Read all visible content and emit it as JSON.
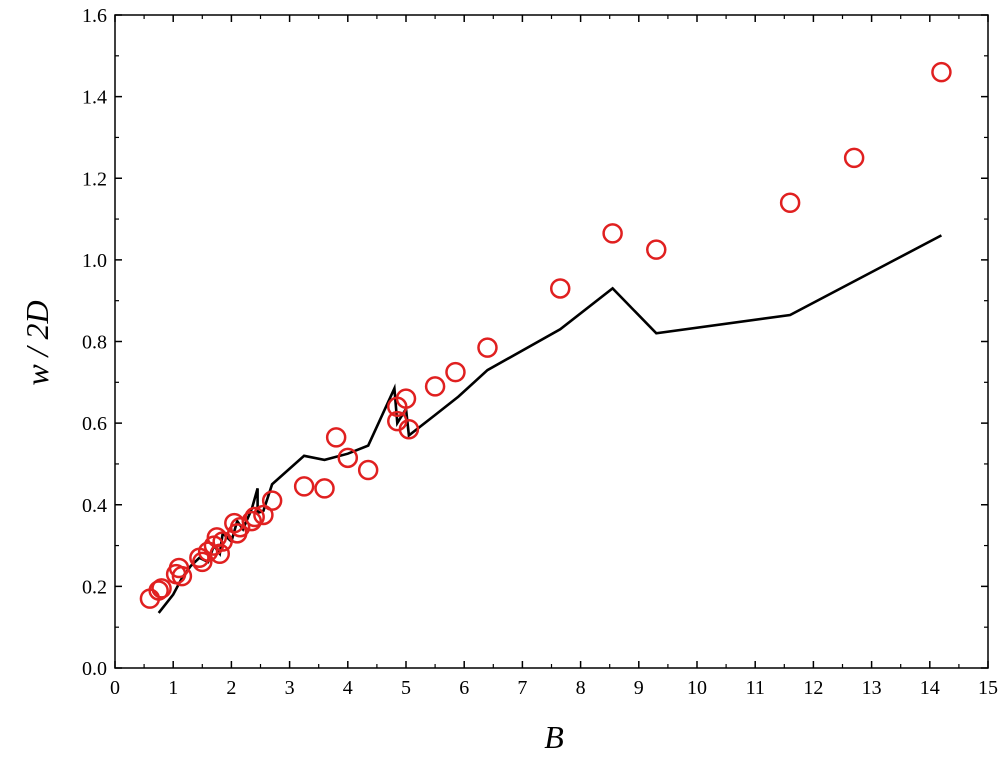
{
  "chart_data": {
    "type": "scatter",
    "title": "",
    "xlabel": "B",
    "ylabel": "w / 2D",
    "xlim": [
      0,
      15
    ],
    "ylim": [
      0.0,
      1.6
    ],
    "x_ticks": [
      "0",
      "1",
      "2",
      "3",
      "4",
      "5",
      "6",
      "7",
      "8",
      "9",
      "10",
      "11",
      "12",
      "13",
      "14",
      "15"
    ],
    "y_ticks": [
      "0.0",
      "0.2",
      "0.4",
      "0.6",
      "0.8",
      "1.0",
      "1.2",
      "1.4",
      "1.6"
    ],
    "grid": false,
    "legend": "none",
    "series": [
      {
        "kind": "scatter",
        "marker": "open-circle",
        "color": "#e02020",
        "points": [
          [
            0.6,
            0.17
          ],
          [
            0.75,
            0.19
          ],
          [
            0.8,
            0.195
          ],
          [
            1.05,
            0.23
          ],
          [
            1.1,
            0.245
          ],
          [
            1.15,
            0.225
          ],
          [
            1.45,
            0.27
          ],
          [
            1.5,
            0.26
          ],
          [
            1.6,
            0.285
          ],
          [
            1.7,
            0.3
          ],
          [
            1.75,
            0.32
          ],
          [
            1.8,
            0.28
          ],
          [
            1.85,
            0.31
          ],
          [
            2.05,
            0.355
          ],
          [
            2.1,
            0.33
          ],
          [
            2.15,
            0.345
          ],
          [
            2.35,
            0.36
          ],
          [
            2.4,
            0.37
          ],
          [
            2.55,
            0.375
          ],
          [
            2.7,
            0.41
          ],
          [
            3.25,
            0.445
          ],
          [
            3.6,
            0.44
          ],
          [
            3.8,
            0.565
          ],
          [
            4.0,
            0.515
          ],
          [
            4.35,
            0.485
          ],
          [
            4.85,
            0.64
          ],
          [
            4.85,
            0.605
          ],
          [
            5.0,
            0.66
          ],
          [
            5.05,
            0.585
          ],
          [
            5.5,
            0.69
          ],
          [
            5.85,
            0.725
          ],
          [
            6.4,
            0.785
          ],
          [
            7.65,
            0.93
          ],
          [
            8.55,
            1.065
          ],
          [
            9.3,
            1.025
          ],
          [
            11.6,
            1.14
          ],
          [
            12.7,
            1.25
          ],
          [
            14.2,
            1.46
          ]
        ]
      },
      {
        "kind": "line",
        "color": "#000000",
        "points": [
          [
            0.75,
            0.135
          ],
          [
            1.0,
            0.18
          ],
          [
            1.15,
            0.22
          ],
          [
            1.3,
            0.25
          ],
          [
            1.45,
            0.27
          ],
          [
            1.6,
            0.26
          ],
          [
            1.7,
            0.3
          ],
          [
            1.8,
            0.28
          ],
          [
            1.85,
            0.33
          ],
          [
            2.0,
            0.31
          ],
          [
            2.1,
            0.36
          ],
          [
            2.2,
            0.34
          ],
          [
            2.35,
            0.39
          ],
          [
            2.45,
            0.44
          ],
          [
            2.45,
            0.38
          ],
          [
            2.55,
            0.385
          ],
          [
            2.7,
            0.45
          ],
          [
            3.25,
            0.52
          ],
          [
            3.6,
            0.51
          ],
          [
            4.0,
            0.525
          ],
          [
            4.35,
            0.545
          ],
          [
            4.8,
            0.685
          ],
          [
            4.85,
            0.6
          ],
          [
            5.0,
            0.635
          ],
          [
            5.05,
            0.57
          ],
          [
            5.5,
            0.62
          ],
          [
            5.9,
            0.665
          ],
          [
            6.4,
            0.73
          ],
          [
            7.65,
            0.83
          ],
          [
            8.55,
            0.93
          ],
          [
            9.3,
            0.82
          ],
          [
            11.6,
            0.865
          ],
          [
            14.2,
            1.06
          ]
        ]
      }
    ]
  }
}
